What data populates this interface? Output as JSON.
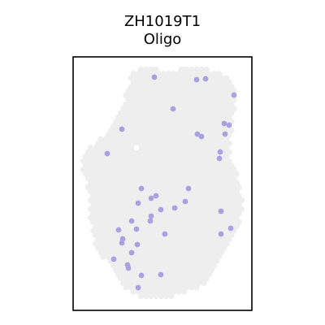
{
  "chart_data": {
    "type": "scatter",
    "title_lines": [
      "ZH1019T1",
      "Oligo"
    ],
    "xlabel": "",
    "ylabel": "",
    "xlim": [
      0,
      220
    ],
    "ylim": [
      0,
      312
    ],
    "grid": false,
    "legend": "none",
    "colors": {
      "tissue_spot": "#eeeeee",
      "highlight_spot": "#a9a2e2",
      "frame": "#000000",
      "background": "#ffffff"
    },
    "tissue_outline": [
      [
        72,
        17
      ],
      [
        90,
        14
      ],
      [
        115,
        16
      ],
      [
        140,
        15
      ],
      [
        160,
        14
      ],
      [
        175,
        16
      ],
      [
        190,
        24
      ],
      [
        197,
        32
      ],
      [
        200,
        45
      ],
      [
        199,
        60
      ],
      [
        198,
        75
      ],
      [
        197,
        88
      ],
      [
        195,
        100
      ],
      [
        192,
        112
      ],
      [
        194,
        122
      ],
      [
        199,
        135
      ],
      [
        203,
        150
      ],
      [
        206,
        165
      ],
      [
        208,
        180
      ],
      [
        208,
        195
      ],
      [
        205,
        210
      ],
      [
        198,
        223
      ],
      [
        190,
        235
      ],
      [
        182,
        248
      ],
      [
        176,
        260
      ],
      [
        170,
        272
      ],
      [
        160,
        282
      ],
      [
        140,
        290
      ],
      [
        115,
        296
      ],
      [
        90,
        297
      ],
      [
        70,
        290
      ],
      [
        60,
        278
      ],
      [
        50,
        262
      ],
      [
        36,
        246
      ],
      [
        27,
        230
      ],
      [
        22,
        212
      ],
      [
        20,
        195
      ],
      [
        20,
        180
      ],
      [
        18,
        165
      ],
      [
        16,
        152
      ],
      [
        12,
        142
      ],
      [
        10,
        132
      ],
      [
        14,
        118
      ],
      [
        24,
        108
      ],
      [
        36,
        98
      ],
      [
        44,
        90
      ],
      [
        52,
        80
      ],
      [
        58,
        70
      ],
      [
        62,
        55
      ],
      [
        66,
        40
      ],
      [
        70,
        28
      ]
    ],
    "tissue_hole": [
      78,
      112
    ],
    "highlighted_spots": [
      [
        100,
        25
      ],
      [
        152,
        28
      ],
      [
        163,
        27
      ],
      [
        198,
        47
      ],
      [
        123,
        64
      ],
      [
        186,
        82
      ],
      [
        192,
        84
      ],
      [
        60,
        89
      ],
      [
        187,
        95
      ],
      [
        153,
        95
      ],
      [
        158,
        98
      ],
      [
        42,
        119
      ],
      [
        181,
        117
      ],
      [
        180,
        125
      ],
      [
        84,
        162
      ],
      [
        142,
        162
      ],
      [
        102,
        171
      ],
      [
        96,
        174
      ],
      [
        80,
        180
      ],
      [
        138,
        178
      ],
      [
        125,
        186
      ],
      [
        108,
        188
      ],
      [
        96,
        196
      ],
      [
        182,
        190
      ],
      [
        95,
        202
      ],
      [
        72,
        202
      ],
      [
        78,
        212
      ],
      [
        56,
        213
      ],
      [
        194,
        211
      ],
      [
        113,
        218
      ],
      [
        182,
        218
      ],
      [
        61,
        224
      ],
      [
        60,
        229
      ],
      [
        79,
        231
      ],
      [
        72,
        241
      ],
      [
        50,
        249
      ],
      [
        67,
        256
      ],
      [
        68,
        260
      ],
      [
        84,
        269
      ],
      [
        108,
        268
      ],
      [
        80,
        284
      ]
    ]
  }
}
